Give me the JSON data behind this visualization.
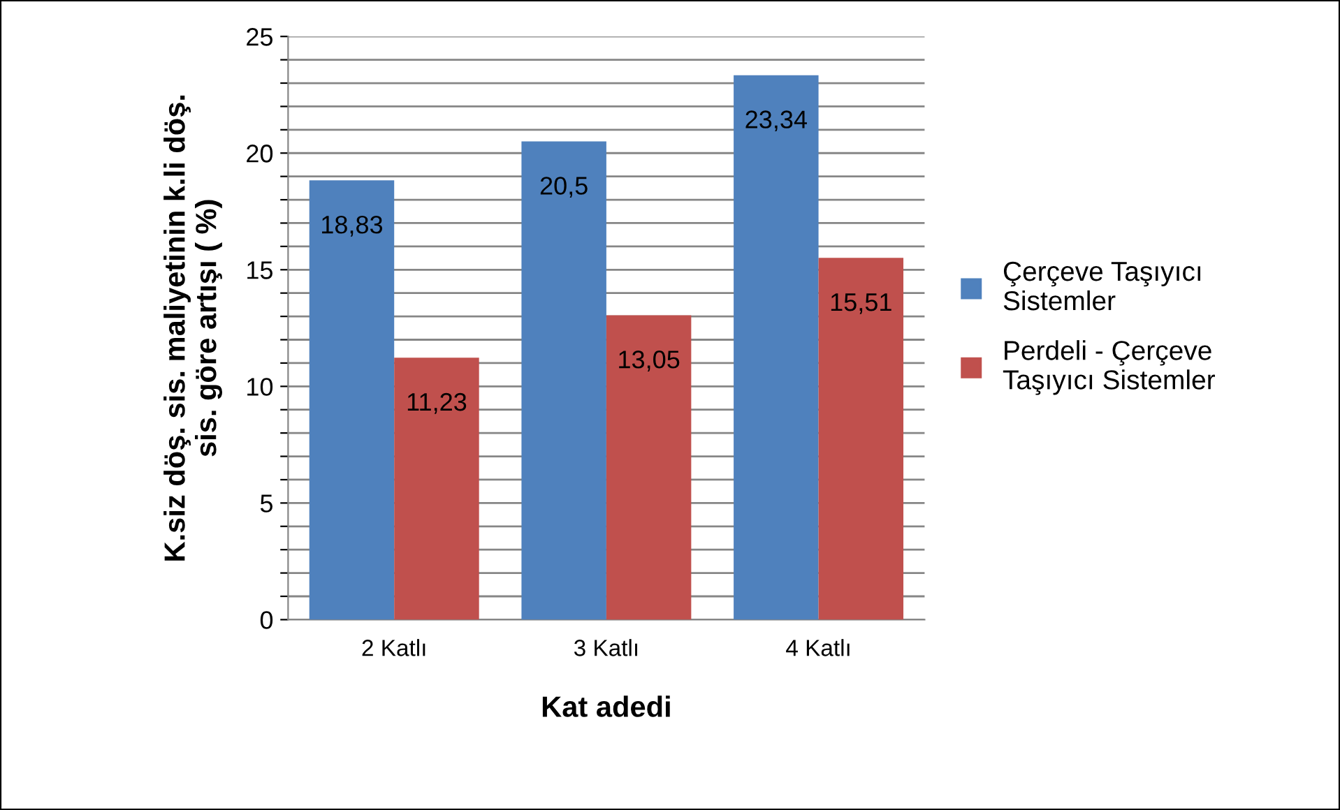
{
  "chart_data": {
    "type": "bar",
    "xlabel": "Kat adedi",
    "ylabel": "K.siz döş. sis. maliyetinin k.li döş.\nsis. göre artışı ( %)",
    "categories": [
      "2 Katlı",
      "3 Katlı",
      "4 Katlı"
    ],
    "series": [
      {
        "name": "Çerçeve Taşıyıcı\nSistemler",
        "color": "#4f81bd",
        "values": [
          18.83,
          20.5,
          23.34
        ],
        "value_labels": [
          "18,83",
          "20,5",
          "23,34"
        ]
      },
      {
        "name": "Perdeli - Çerçeve\nTaşıyıcı Sistemler",
        "color": "#c0504d",
        "values": [
          11.23,
          13.05,
          15.51
        ],
        "value_labels": [
          "11,23",
          "13,05",
          "15,51"
        ]
      }
    ],
    "ylim": [
      0,
      25
    ],
    "yticks": [
      0,
      {
        "value": 1,
        "label": null
      },
      {
        "value": 2,
        "label": null
      },
      {
        "value": 3,
        "label": null
      },
      {
        "value": 4,
        "label": null
      },
      5,
      {
        "value": 6,
        "label": null
      },
      {
        "value": 7,
        "label": null
      },
      {
        "value": 8,
        "label": null
      },
      {
        "value": 9,
        "label": null
      },
      10,
      {
        "value": 11,
        "label": null
      },
      {
        "value": 12,
        "label": null
      },
      {
        "value": 13,
        "label": null
      },
      {
        "value": 14,
        "label": null
      },
      15,
      {
        "value": 16,
        "label": null
      },
      {
        "value": 17,
        "label": null
      },
      {
        "value": 18,
        "label": null
      },
      {
        "value": 19,
        "label": null
      },
      20,
      {
        "value": 21,
        "label": null
      },
      {
        "value": 22,
        "label": null
      },
      {
        "value": 23,
        "label": null
      },
      {
        "value": 24,
        "label": null
      },
      25
    ],
    "grid": "y",
    "legend": "right"
  }
}
